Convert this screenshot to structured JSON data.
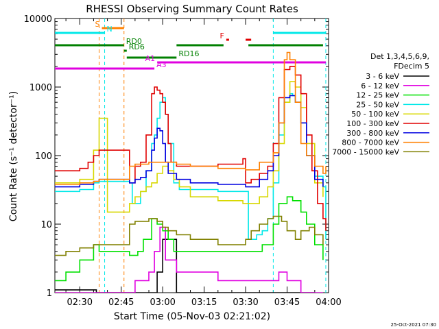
{
  "chart_data": {
    "type": "line",
    "title": "RHESSI Observing Summary Count Rates",
    "xlabel": "Start Time (05-Nov-03 02:21:02)",
    "ylabel": "Count Rate (s⁻¹ detector⁻¹)",
    "y_scale": "log",
    "ylim": [
      1,
      10000
    ],
    "xlim": [
      "02:21",
      "04:00"
    ],
    "x_ticks": [
      "02:30",
      "02:45",
      "03:00",
      "03:15",
      "03:30",
      "03:45",
      "04:00"
    ],
    "y_ticks": [
      "1",
      "10",
      "100",
      "1000",
      "10000"
    ],
    "legend": {
      "placement": "right",
      "title_lines": [
        "Det 1,3,4,5,6,9,",
        "FDecim 5"
      ]
    },
    "series": [
      {
        "name": "3 - 6 keV",
        "color": "#000000",
        "x": [
          "02:21",
          "02:30",
          "02:36",
          "02:48",
          "02:54",
          "02:58",
          "03:00",
          "03:05",
          "03:30",
          "03:38",
          "03:42",
          "03:44",
          "03:48",
          "03:55"
        ],
        "y": [
          1.1,
          1.1,
          1,
          1,
          1,
          2,
          6,
          1,
          1,
          1,
          1,
          1,
          1,
          1
        ]
      },
      {
        "name": "6 - 12 keV",
        "color": "#e000e0",
        "x": [
          "02:21",
          "02:36",
          "02:50",
          "02:55",
          "02:57",
          "02:59",
          "03:01",
          "03:05",
          "03:20",
          "03:35",
          "03:42",
          "03:45",
          "03:50",
          "03:58"
        ],
        "y": [
          1,
          1,
          1.5,
          2,
          4,
          9,
          3,
          2,
          1.5,
          1.5,
          2,
          1.5,
          1,
          1
        ]
      },
      {
        "name": "12 - 25 keV",
        "color": "#00e000",
        "x": [
          "02:21",
          "02:25",
          "02:30",
          "02:35",
          "02:37",
          "02:48",
          "02:51",
          "02:53",
          "02:56",
          "02:58",
          "03:00",
          "03:02",
          "03:04",
          "03:10",
          "03:20",
          "03:30",
          "03:36",
          "03:40",
          "03:42",
          "03:45",
          "03:47",
          "03:50",
          "03:52",
          "03:55",
          "03:58"
        ],
        "y": [
          1.5,
          2,
          3,
          5,
          4,
          3.5,
          4,
          6,
          12,
          10,
          8,
          6,
          4,
          4,
          4,
          4,
          5,
          10,
          20,
          25,
          22,
          15,
          10,
          5,
          3
        ]
      },
      {
        "name": "25 - 50 keV",
        "color": "#00e8e8",
        "x": [
          "02:21",
          "02:25",
          "02:30",
          "02:35",
          "02:37",
          "02:48",
          "02:49",
          "02:52",
          "02:54",
          "02:56",
          "02:57",
          "02:58",
          "02:59",
          "03:00",
          "03:01",
          "03:02",
          "03:04",
          "03:06",
          "03:10",
          "03:20",
          "03:30",
          "03:31",
          "03:34",
          "03:36",
          "03:38",
          "03:40",
          "03:42",
          "03:44",
          "03:46",
          "03:47",
          "03:48",
          "03:50",
          "03:52",
          "03:55",
          "03:58",
          "03:59"
        ],
        "y": [
          30,
          30,
          32,
          40,
          42,
          40,
          20,
          30,
          60,
          150,
          200,
          350,
          600,
          700,
          400,
          150,
          40,
          32,
          32,
          30,
          30,
          6,
          7,
          8,
          12,
          40,
          200,
          600,
          800,
          750,
          600,
          300,
          100,
          50,
          35,
          6
        ]
      },
      {
        "name": "50 - 100 keV",
        "color": "#d8d800",
        "x": [
          "02:21",
          "02:25",
          "02:30",
          "02:35",
          "02:37",
          "02:40",
          "02:47",
          "02:48",
          "02:50",
          "02:52",
          "02:54",
          "02:56",
          "02:58",
          "03:00",
          "03:02",
          "03:04",
          "03:06",
          "03:10",
          "03:20",
          "03:29",
          "03:31",
          "03:35",
          "03:38",
          "03:40",
          "03:42",
          "03:44",
          "03:46",
          "03:48",
          "03:50",
          "03:52",
          "03:55",
          "03:58"
        ],
        "y": [
          40,
          40,
          45,
          120,
          350,
          15,
          15,
          20,
          25,
          30,
          35,
          40,
          55,
          70,
          60,
          45,
          35,
          25,
          22,
          20,
          20,
          25,
          35,
          60,
          150,
          600,
          1200,
          1000,
          500,
          150,
          40,
          25
        ]
      },
      {
        "name": "100 - 300 keV",
        "color": "#e00000",
        "x": [
          "02:21",
          "02:25",
          "02:30",
          "02:33",
          "02:35",
          "02:37",
          "02:48",
          "02:50",
          "02:52",
          "02:54",
          "02:56",
          "02:57",
          "02:58",
          "02:59",
          "03:00",
          "03:01",
          "03:02",
          "03:03",
          "03:05",
          "03:10",
          "03:20",
          "03:29",
          "03:30",
          "03:32",
          "03:35",
          "03:38",
          "03:40",
          "03:42",
          "03:44",
          "03:46",
          "03:48",
          "03:50",
          "03:52",
          "03:54",
          "03:56",
          "03:58",
          "03:59"
        ],
        "y": [
          60,
          60,
          65,
          80,
          100,
          120,
          40,
          70,
          80,
          200,
          800,
          1000,
          900,
          800,
          600,
          400,
          150,
          80,
          70,
          70,
          75,
          90,
          40,
          45,
          55,
          70,
          150,
          700,
          1800,
          2000,
          1500,
          800,
          200,
          60,
          20,
          12,
          8
        ]
      },
      {
        "name": "300 - 800 keV",
        "color": "#0000e0",
        "x": [
          "02:21",
          "02:25",
          "02:30",
          "02:35",
          "02:37",
          "02:48",
          "02:50",
          "02:52",
          "02:54",
          "02:56",
          "02:57",
          "02:58",
          "02:59",
          "03:00",
          "03:01",
          "03:02",
          "03:05",
          "03:10",
          "03:20",
          "03:29",
          "03:30",
          "03:35",
          "03:38",
          "03:40",
          "03:42",
          "03:44",
          "03:46",
          "03:48",
          "03:50",
          "03:52",
          "03:55",
          "03:58"
        ],
        "y": [
          35,
          35,
          38,
          42,
          45,
          40,
          45,
          48,
          60,
          120,
          180,
          250,
          230,
          150,
          80,
          55,
          45,
          40,
          38,
          38,
          35,
          45,
          60,
          100,
          300,
          700,
          750,
          600,
          300,
          100,
          45,
          35
        ]
      },
      {
        "name": "800 - 7000 keV",
        "color": "#ff8000",
        "x": [
          "02:21",
          "02:25",
          "02:30",
          "02:35",
          "02:37",
          "02:48",
          "02:50",
          "02:55",
          "03:00",
          "03:05",
          "03:10",
          "03:20",
          "03:30",
          "03:35",
          "03:40",
          "03:42",
          "03:44",
          "03:45",
          "03:46",
          "03:48",
          "03:50",
          "03:52",
          "03:55",
          "03:58",
          "03:59"
        ],
        "y": [
          38,
          38,
          40,
          42,
          45,
          70,
          75,
          80,
          80,
          75,
          70,
          65,
          62,
          80,
          110,
          300,
          2500,
          3200,
          2500,
          600,
          150,
          100,
          70,
          55,
          70
        ]
      },
      {
        "name": "7000 - 15000 keV",
        "color": "#808000",
        "x": [
          "02:21",
          "02:25",
          "02:30",
          "02:35",
          "02:37",
          "02:48",
          "02:50",
          "02:55",
          "02:58",
          "03:00",
          "03:02",
          "03:05",
          "03:10",
          "03:20",
          "03:28",
          "03:30",
          "03:32",
          "03:35",
          "03:38",
          "03:40",
          "03:43",
          "03:45",
          "03:48",
          "03:50",
          "03:53",
          "03:55",
          "03:58"
        ],
        "y": [
          3.5,
          4,
          4.5,
          5,
          5,
          10,
          11,
          12,
          11,
          9,
          8,
          7,
          6,
          5,
          5,
          6,
          8,
          10,
          12,
          13,
          11,
          8,
          6,
          8,
          9,
          7,
          5
        ]
      }
    ],
    "state_bars": [
      {
        "label": "S",
        "color": "#ff8000",
        "segments": [
          [
            "02:38",
            "02:46"
          ]
        ]
      },
      {
        "label": "N",
        "color": "#00e8e8",
        "segments": [
          [
            "02:21",
            "02:39"
          ],
          [
            "03:40",
            "03:59"
          ]
        ]
      },
      {
        "label": "F",
        "color": "#e00000",
        "segments": [
          [
            "03:23",
            "03:24"
          ],
          [
            "03:30",
            "03:32"
          ]
        ]
      },
      {
        "label": "RD0",
        "color": "#008000",
        "segments": [
          [
            "02:21",
            "02:46"
          ],
          [
            "03:05",
            "03:22"
          ],
          [
            "03:31",
            "03:58"
          ]
        ]
      },
      {
        "label": "RD6",
        "color": "#008000",
        "segments": [
          [
            "02:46",
            "02:47"
          ]
        ]
      },
      {
        "label": "RD16",
        "color": "#008000",
        "segments": [
          [
            "02:47",
            "03:05"
          ]
        ]
      },
      {
        "label": "A1",
        "color": "#e000e0",
        "segments": [
          [
            "02:58",
            "03:59"
          ]
        ]
      },
      {
        "label": "A3",
        "color": "#e000e0",
        "segments": [
          [
            "02:21",
            "02:57"
          ]
        ]
      }
    ],
    "vertical_markers": [
      {
        "x": "02:37",
        "color": "#ff8000"
      },
      {
        "x": "02:39",
        "color": "#00e8e8"
      },
      {
        "x": "02:46",
        "color": "#ff8000"
      },
      {
        "x": "03:40",
        "color": "#00e8e8"
      },
      {
        "x": "03:59",
        "color": "#00e8e8"
      }
    ]
  },
  "footer": {
    "timestamp": "25-Oct-2021 07:30"
  }
}
